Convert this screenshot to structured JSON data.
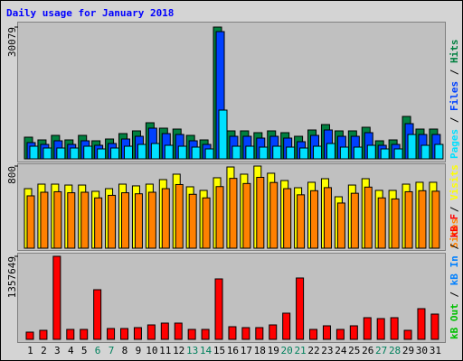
{
  "chart_data": [
    {
      "type": "bar",
      "title": "Daily usage for January 2018",
      "legend_separator": " / ",
      "ylim": [
        0,
        30079
      ],
      "yticks": [
        30079
      ],
      "series": [
        {
          "name": "Hits",
          "color": "#008040",
          "values": [
            4944,
            4326,
            5356,
            4326,
            5356,
            4120,
            4532,
            5768,
            6386,
            8240,
            7004,
            6798,
            5356,
            4326,
            30079,
            6386,
            6386,
            5974,
            6386,
            5974,
            5150,
            6592,
            7828,
            6386,
            6386,
            7210,
            4120,
            4326,
            9682,
            6798,
            6798
          ]
        },
        {
          "name": "Files",
          "color": "#0040ff",
          "values": [
            3708,
            3296,
            4120,
            3296,
            4120,
            3090,
            3502,
            4532,
            5150,
            7004,
            5768,
            5562,
            4120,
            3296,
            29046,
            5150,
            5150,
            4738,
            5150,
            4738,
            3914,
            5356,
            6592,
            5150,
            5150,
            5974,
            3090,
            3296,
            8034,
            5562,
            5562
          ]
        },
        {
          "name": "Pages",
          "color": "#00e0ff",
          "values": [
            2884,
            2472,
            2472,
            2472,
            2884,
            2266,
            2472,
            2884,
            3296,
            3502,
            3090,
            2884,
            2678,
            2266,
            11124,
            2884,
            2884,
            2678,
            2884,
            2678,
            2472,
            2884,
            3502,
            2678,
            2678,
            3090,
            2266,
            2266,
            5562,
            3090,
            3296
          ]
        }
      ]
    },
    {
      "type": "bar",
      "legend_separator": " / ",
      "ylim": [
        0,
        800
      ],
      "yticks": [
        800
      ],
      "series": [
        {
          "name": "Visits",
          "color": "#ffff00",
          "values": [
            580,
            624,
            624,
            615,
            615,
            554,
            580,
            624,
            607,
            624,
            668,
            721,
            598,
            563,
            686,
            791,
            721,
            800,
            730,
            659,
            589,
            642,
            677,
            501,
            615,
            677,
            563,
            563,
            624,
            642,
            642
          ]
        },
        {
          "name": "Sites",
          "color": "#ff8000",
          "values": [
            510,
            545,
            550,
            540,
            545,
            490,
            515,
            540,
            530,
            545,
            580,
            620,
            525,
            490,
            600,
            680,
            630,
            690,
            640,
            580,
            520,
            560,
            590,
            440,
            535,
            595,
            490,
            480,
            550,
            560,
            555
          ]
        }
      ]
    },
    {
      "type": "bar",
      "legend_separator": " / ",
      "categories": [
        "1",
        "2",
        "3",
        "4",
        "5",
        "6",
        "7",
        "8",
        "9",
        "10",
        "11",
        "12",
        "13",
        "14",
        "15",
        "16",
        "17",
        "18",
        "19",
        "20",
        "21",
        "22",
        "23",
        "24",
        "25",
        "26",
        "27",
        "28",
        "29",
        "30",
        "31"
      ],
      "label_colors": [
        "#000000",
        "#000000",
        "#000000",
        "#000000",
        "#000000",
        "#00805c",
        "#00805c",
        "#000000",
        "#000000",
        "#000000",
        "#000000",
        "#000000",
        "#00805c",
        "#00805c",
        "#000000",
        "#000000",
        "#000000",
        "#000000",
        "#000000",
        "#00805c",
        "#00805c",
        "#000000",
        "#000000",
        "#000000",
        "#000000",
        "#000000",
        "#00805c",
        "#00805c",
        "#000000",
        "#000000",
        "#000000"
      ],
      "ylim": [
        0,
        1357649
      ],
      "yticks": [
        1357649
      ],
      "series": [
        {
          "name": "kB F",
          "color": "#ff0000",
          "values": [
            118056,
            147570,
            1357649,
            162327,
            162327,
            811635,
            177084,
            177084,
            191841,
            236112,
            265626,
            265626,
            162327,
            162327,
            988719,
            206598,
            191841,
            191841,
            236112,
            427953,
            1003476,
            162327,
            221355,
            162327,
            221355,
            354168,
            339411,
            354168,
            147570,
            501738,
            413196
          ]
        },
        {
          "name": "kB In",
          "color": "#0080ff",
          "values": [
            0,
            0,
            0,
            0,
            0,
            0,
            0,
            0,
            0,
            0,
            0,
            0,
            0,
            0,
            0,
            0,
            0,
            0,
            0,
            0,
            0,
            0,
            0,
            0,
            0,
            0,
            0,
            0,
            0,
            0,
            0
          ]
        },
        {
          "name": "kB Out",
          "color": "#00c000",
          "values": [
            0,
            0,
            0,
            0,
            0,
            0,
            0,
            0,
            0,
            0,
            0,
            0,
            0,
            0,
            0,
            0,
            0,
            0,
            0,
            0,
            0,
            0,
            0,
            0,
            0,
            0,
            0,
            0,
            0,
            0,
            0
          ]
        }
      ]
    }
  ]
}
